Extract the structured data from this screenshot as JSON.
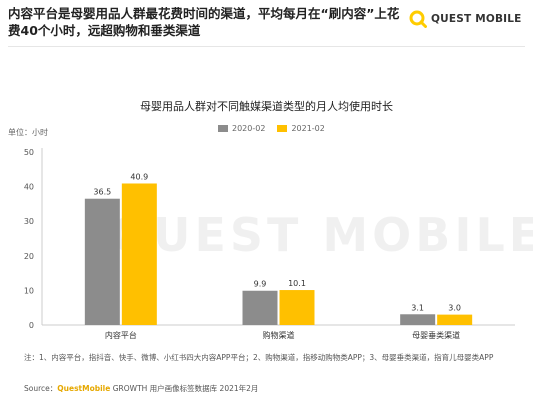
{
  "headline": "内容平台是母婴用品人群最花费时间的渠道，平均每月在“刷内容”上花费40个小时，远超购物和垂类渠道",
  "logo": {
    "text": "QUEST MOBILE",
    "icon": "quest-mobile-logo-icon",
    "accent": "#ffcc00"
  },
  "watermark": "QUEST MOBILE",
  "colors": {
    "series_2020": "#8c8c8c",
    "series_2021": "#ffc000",
    "axis": "#cccccc",
    "text": "#333333"
  },
  "chart_data": {
    "type": "bar",
    "title": "母婴用品人群对不同触媒渠道类型的月人均使用时长",
    "unit_label": "单位：小时",
    "categories": [
      "内容平台",
      "购物渠道",
      "母婴垂类渠道"
    ],
    "series": [
      {
        "name": "2020-02",
        "values": [
          36.5,
          9.9,
          3.1
        ]
      },
      {
        "name": "2021-02",
        "values": [
          40.9,
          10.1,
          3.0
        ]
      }
    ],
    "data_labels": [
      [
        "36.5",
        "9.9",
        "3.1"
      ],
      [
        "40.9",
        "10.1",
        "3.0"
      ]
    ],
    "ylim": [
      0,
      50
    ],
    "yticks": [
      "0",
      "10",
      "20",
      "30",
      "40",
      "50"
    ],
    "legend_position": "top-center",
    "grid": false
  },
  "note": "注：1、内容平台，指抖音、快手、微博、小红书四大内容APP平台；2、购物渠道，指移动购物类APP；3、母婴垂类渠道，指育儿母婴类APP",
  "source": {
    "prefix": "Source：",
    "brand": "QuestMobile",
    "rest": " GROWTH 用户画像标签数据库 2021年2月"
  }
}
